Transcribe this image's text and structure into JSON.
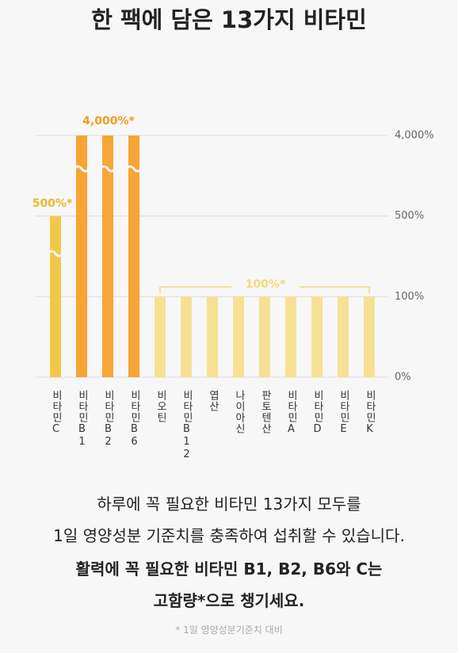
{
  "title": "한 팩에 담은 13가지 비타민",
  "chart_data": {
    "type": "bar",
    "categories": [
      "비타민C",
      "비타민B1",
      "비타민B2",
      "비타민B6",
      "비오틴",
      "비타민B12",
      "엽산",
      "나이아신",
      "판토텐산",
      "비타민A",
      "비타민D",
      "비타민E",
      "비타민K"
    ],
    "values": [
      500,
      4000,
      4000,
      4000,
      100,
      100,
      100,
      100,
      100,
      100,
      100,
      100,
      100
    ],
    "colors": [
      "#f2c84b",
      "#f7a534",
      "#f7a534",
      "#f7a534",
      "#f6e192",
      "#f6e192",
      "#f6e192",
      "#f6e192",
      "#f6e192",
      "#f6e192",
      "#f6e192",
      "#f6e192",
      "#f6e192"
    ],
    "ylim": [
      0,
      4000
    ],
    "yticks": [
      {
        "value": 0,
        "label": "0%"
      },
      {
        "value": 100,
        "label": "100%"
      },
      {
        "value": 500,
        "label": "500%"
      },
      {
        "value": 4000,
        "label": "4,000%"
      }
    ],
    "grid": true,
    "annotations": [
      "500%*",
      "4,000%*",
      "100%*"
    ]
  },
  "description": [
    "하루에 꼭 필요한 비타민 13가지 모두를",
    "1일 영양성분 기준치를 충족하여 섭취할 수 있습니다."
  ],
  "highlight": [
    "활력에 꼭 필요한 비타민 B1, B2, B6와 C는",
    "고함량*으로 챙기세요."
  ],
  "footnote": "* 1일 영양성분기준치 대비"
}
